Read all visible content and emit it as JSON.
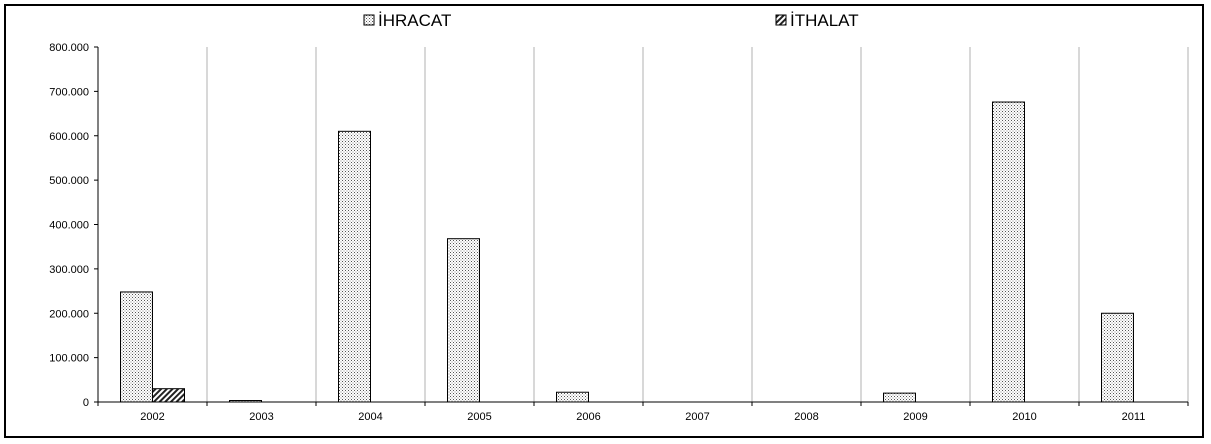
{
  "chart_data": {
    "type": "bar",
    "categories": [
      "2002",
      "2003",
      "2004",
      "2005",
      "2006",
      "2007",
      "2008",
      "2009",
      "2010",
      "2011"
    ],
    "series": [
      {
        "name": "İHRACAT",
        "values": [
          248000,
          3000,
          610000,
          368000,
          22000,
          0,
          0,
          20000,
          676000,
          200000
        ]
      },
      {
        "name": "İTHALAT",
        "values": [
          30000,
          0,
          0,
          0,
          0,
          0,
          0,
          0,
          0,
          0
        ]
      }
    ],
    "ylim": [
      0,
      800000
    ],
    "yticks": [
      0,
      100000,
      200000,
      300000,
      400000,
      500000,
      600000,
      700000,
      800000
    ],
    "ytick_labels": [
      "0",
      "100.000",
      "200.000",
      "300.000",
      "400.000",
      "500.000",
      "600.000",
      "700.000",
      "800.000"
    ],
    "xlabel": "",
    "ylabel": "",
    "title": "",
    "grid": "vertical category separators",
    "legend": "top-center"
  }
}
